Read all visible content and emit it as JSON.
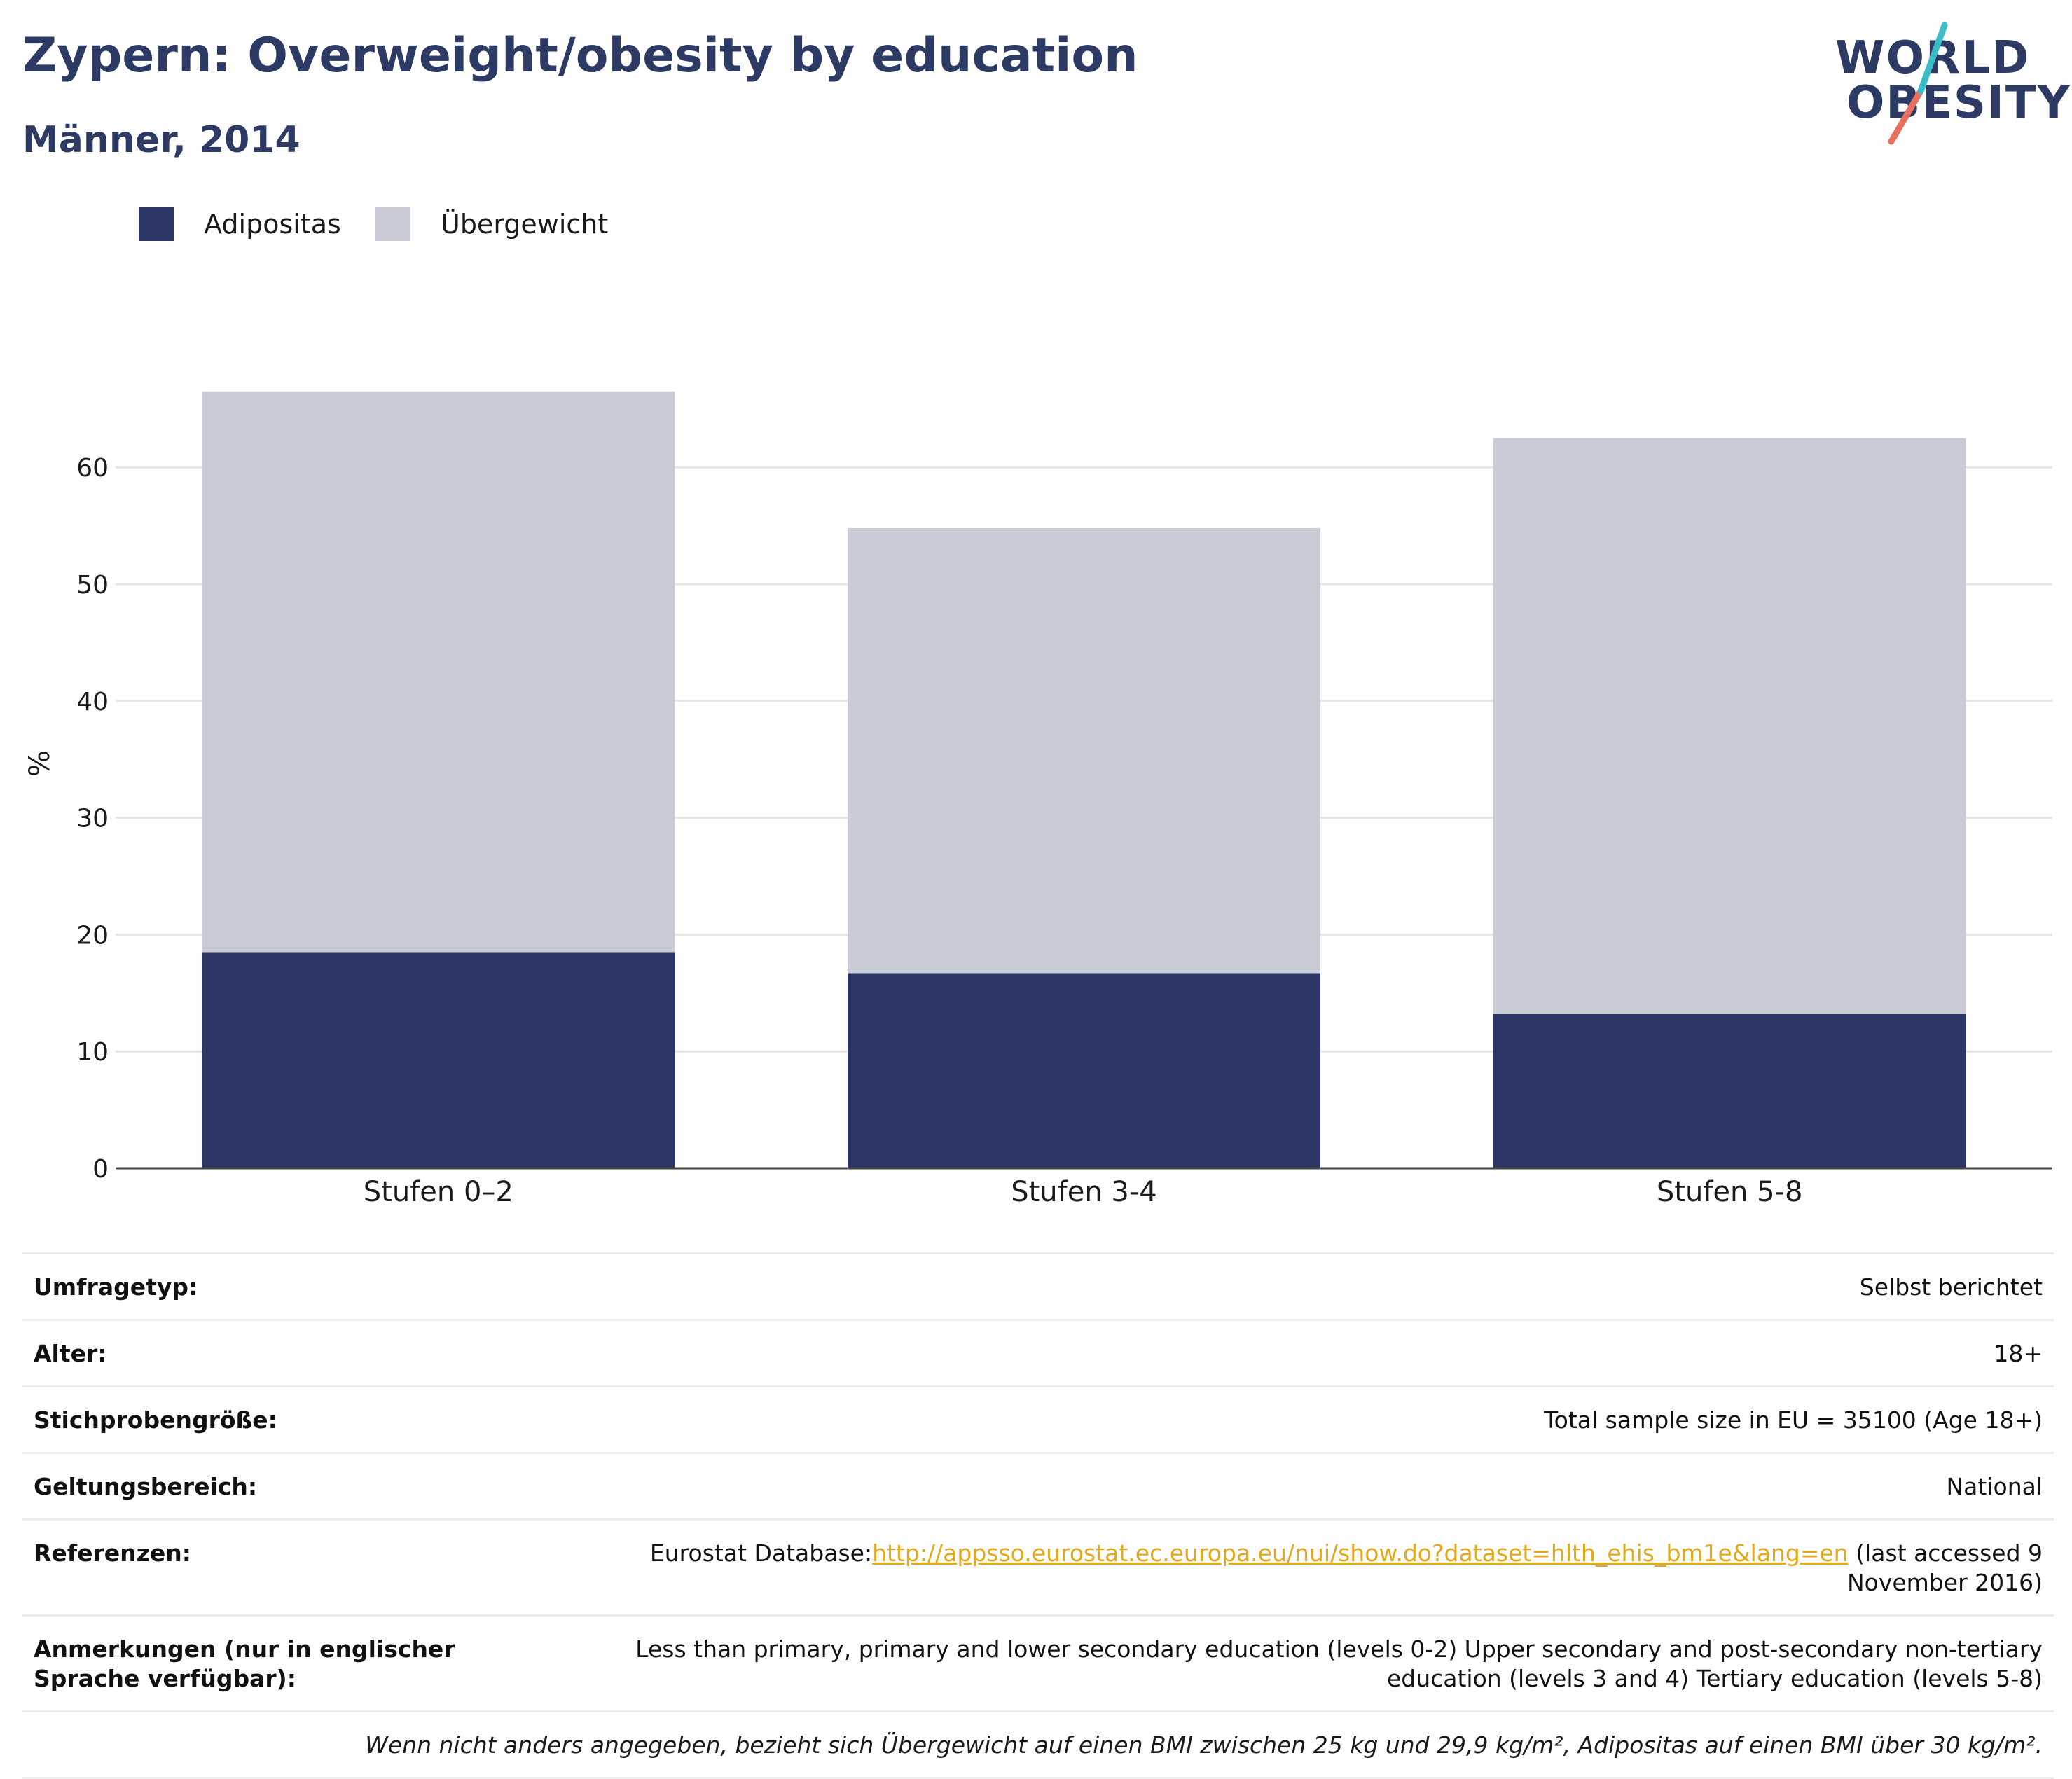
{
  "header": {
    "title": "Zypern: Overweight/obesity by education",
    "subtitle": "Männer, 2014"
  },
  "logo": {
    "line1": "WORLD",
    "line2": "OBESITY",
    "accent_colors": [
      "#3bbcc6",
      "#e8705e"
    ]
  },
  "legend": [
    {
      "label": "Adipositas",
      "color": "#2b3664"
    },
    {
      "label": "Übergewicht",
      "color": "#c9cbd7"
    }
  ],
  "chart_data": {
    "type": "bar",
    "stacked": true,
    "categories": [
      "Stufen 0–2",
      "Stufen 3-4",
      "Stufen 5-8"
    ],
    "series": [
      {
        "name": "Adipositas",
        "color": "#2b3664",
        "values": [
          18.5,
          16.7,
          13.2
        ]
      },
      {
        "name": "Übergewicht",
        "color": "#c9cbd7",
        "values": [
          48.0,
          38.1,
          49.3
        ]
      }
    ],
    "ylabel": "%",
    "yticks": [
      0,
      10,
      20,
      30,
      40,
      50,
      60
    ],
    "ylim": [
      0,
      70
    ],
    "grid": true,
    "legend_position": "top-left"
  },
  "info": {
    "survey_type": {
      "key": "Umfragetyp:",
      "value": "Selbst berichtet"
    },
    "age": {
      "key": "Alter:",
      "value": "18+"
    },
    "sample": {
      "key": "Stichprobengröße:",
      "value": "Total sample size in EU = 35100 (Age 18+)"
    },
    "scope": {
      "key": "Geltungsbereich:",
      "value": "National"
    },
    "references": {
      "key": "Referenzen:",
      "prefix": "Eurostat Database:",
      "link": "http://appsso.eurostat.ec.europa.eu/nui/show.do?dataset=hlth_ehis_bm1e&lang=en",
      "suffix": " (last accessed 9 November 2016)"
    },
    "notes": {
      "key": "Anmerkungen (nur in englischer Sprache verfügbar):",
      "value": "Less than primary, primary and lower secondary education (levels 0-2) Upper secondary and post-secondary non-tertiary education (levels 3 and 4) Tertiary education (levels 5-8)"
    },
    "footnote": "Wenn nicht anders angegeben, bezieht sich Übergewicht auf einen BMI zwischen 25 kg und 29,9 kg/m², Adipositas auf einen BMI über 30 kg/m²."
  }
}
